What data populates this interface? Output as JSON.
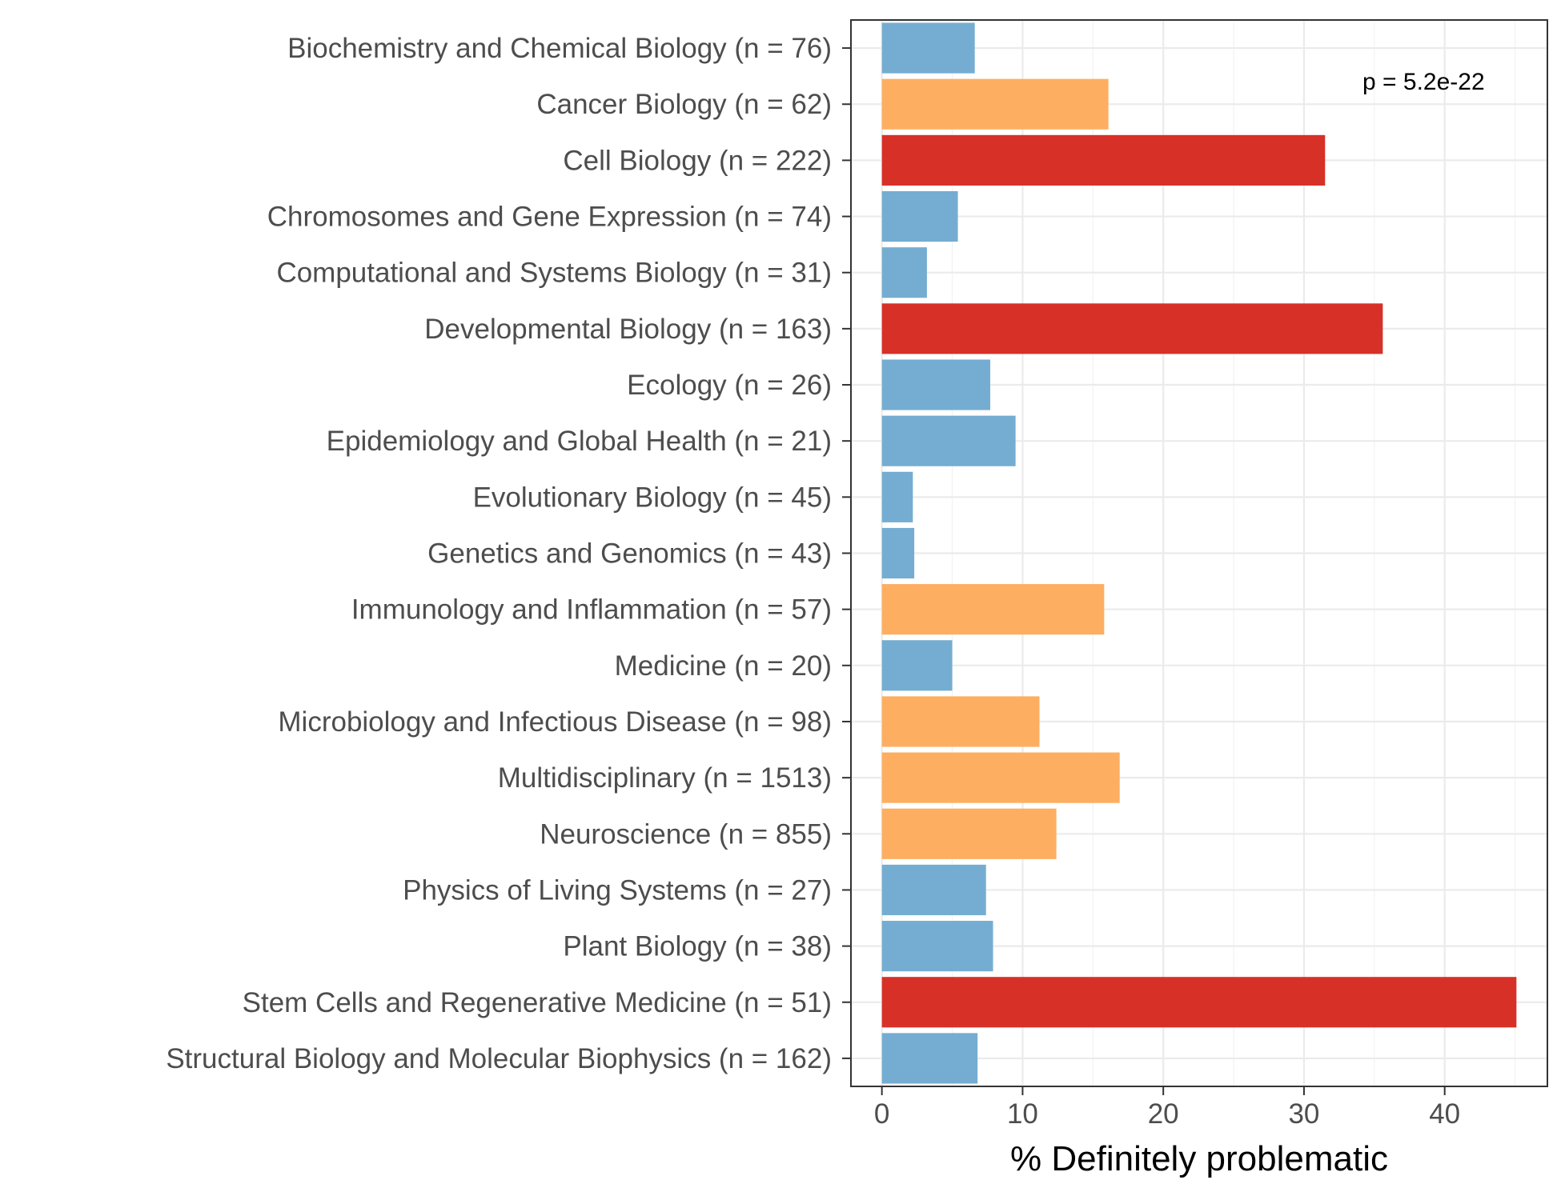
{
  "chart_data": {
    "type": "bar",
    "orientation": "horizontal",
    "xlabel": "% Definitely problematic",
    "ylabel": "",
    "xlim": [
      -2.2,
      47.3
    ],
    "xticks": [
      0,
      10,
      20,
      30,
      40
    ],
    "grid": true,
    "annotation": "p = 5.2e-22",
    "colors": {
      "low": "#74add1",
      "mid": "#fdae61",
      "high": "#d73027"
    },
    "categories": [
      "Biochemistry and Chemical Biology (n = 76)",
      "Cancer Biology (n = 62)",
      "Cell Biology (n = 222)",
      "Chromosomes and Gene Expression (n = 74)",
      "Computational and Systems Biology (n = 31)",
      "Developmental Biology (n = 163)",
      "Ecology (n = 26)",
      "Epidemiology and Global Health (n = 21)",
      "Evolutionary Biology (n = 45)",
      "Genetics and Genomics (n = 43)",
      "Immunology and Inflammation (n = 57)",
      "Medicine (n = 20)",
      "Microbiology and Infectious Disease (n = 98)",
      "Multidisciplinary (n = 1513)",
      "Neuroscience (n = 855)",
      "Physics of Living Systems (n = 27)",
      "Plant Biology (n = 38)",
      "Stem Cells and Regenerative Medicine (n = 51)",
      "Structural Biology and Molecular Biophysics (n = 162)"
    ],
    "values": [
      6.6,
      16.1,
      31.5,
      5.4,
      3.2,
      35.6,
      7.7,
      9.5,
      2.2,
      2.3,
      15.8,
      5.0,
      11.2,
      16.9,
      12.4,
      7.4,
      7.9,
      45.1,
      6.8
    ],
    "bar_color_group": [
      "low",
      "mid",
      "high",
      "low",
      "low",
      "high",
      "low",
      "low",
      "low",
      "low",
      "mid",
      "low",
      "mid",
      "mid",
      "mid",
      "low",
      "low",
      "high",
      "low"
    ]
  }
}
